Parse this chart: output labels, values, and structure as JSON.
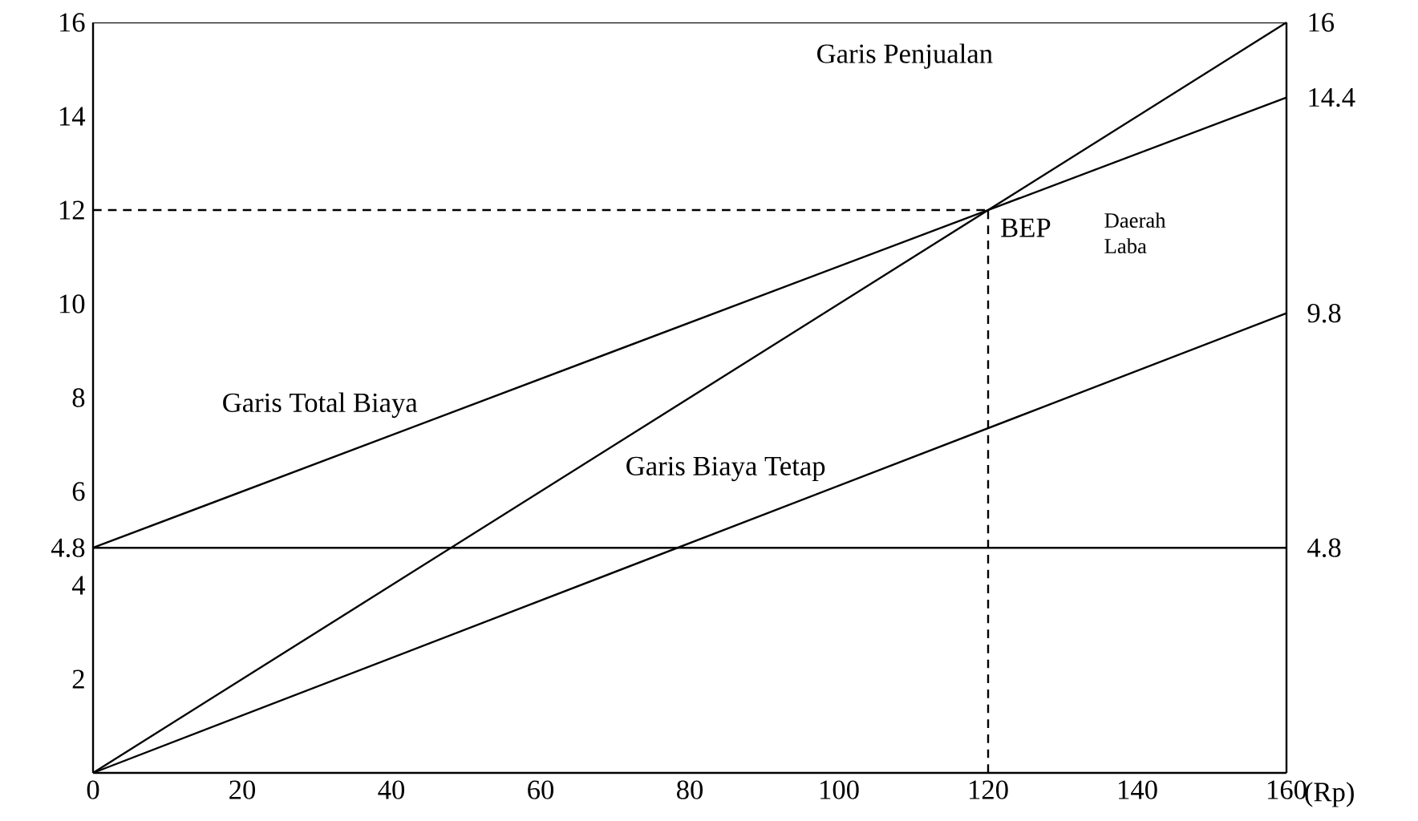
{
  "chart_data": {
    "type": "line",
    "xlabel": "(Rp)",
    "xlim": [
      0,
      160
    ],
    "ylim": [
      0,
      16
    ],
    "xticks": [
      0,
      20,
      40,
      60,
      80,
      100,
      120,
      140,
      160
    ],
    "yticks": [
      2,
      4,
      4.8,
      6,
      8,
      10,
      12,
      14,
      16
    ],
    "y2lim": [
      0,
      16
    ],
    "y2ticks": [
      4.8,
      9.8,
      14.4,
      16
    ],
    "grid": false,
    "marker": "none",
    "line_style": "solid",
    "series": [
      {
        "color": "#000000",
        "x": [
          0,
          160
        ],
        "values": [
          0,
          16
        ]
      },
      {
        "color": "#000000",
        "x": [
          0,
          160
        ],
        "values": [
          4.8,
          14.4
        ]
      },
      {
        "color": "#000000",
        "x": [
          0,
          160
        ],
        "values": [
          0,
          9.8
        ]
      },
      {
        "color": "#000000",
        "x": [
          0,
          160
        ],
        "values": [
          4.8,
          4.8
        ]
      },
      {
        "color": "#000000",
        "x": [
          0,
          120
        ],
        "values": [
          12,
          12
        ],
        "line_style": "dashed"
      },
      {
        "color": "#000000",
        "x": [
          120,
          120
        ],
        "values": [
          0,
          12
        ],
        "line_style": "dashed"
      }
    ],
    "annotations": [
      "Garis Penjualan",
      "Garis Total Biaya",
      "Garis Biaya Tetap",
      "Daerah Laba",
      "BEP"
    ]
  }
}
